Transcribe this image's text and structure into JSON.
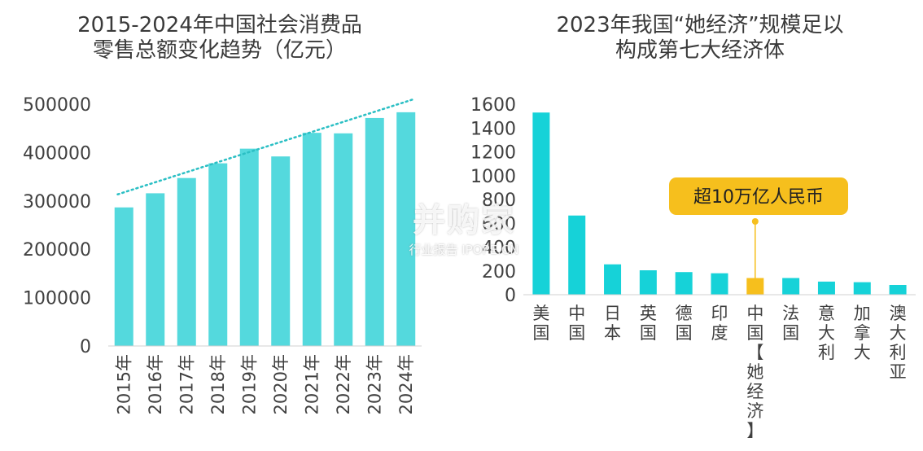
{
  "chart_data": [
    {
      "type": "bar",
      "title_lines": [
        "2015-2024年中国社会消费品",
        "零售总额变化趋势（亿元）"
      ],
      "categories": [
        "2015年",
        "2016年",
        "2017年",
        "2018年",
        "2019年",
        "2020年",
        "2021年",
        "2022年",
        "2023年",
        "2024年"
      ],
      "values": [
        286588,
        315806,
        347327,
        377783,
        408017,
        391981,
        440823,
        439733,
        471495,
        483345
      ],
      "ylim": [
        0,
        500000
      ],
      "yticks": [
        "0",
        "100000",
        "200000",
        "300000",
        "400000",
        "500000"
      ],
      "trendline": true,
      "colors": {
        "bar": "#54d9dd",
        "trend": "#2bbfc4"
      }
    },
    {
      "type": "bar",
      "title_lines": [
        "2023年我国“她经济”规模足以",
        "构成第七大经济体"
      ],
      "categories": [
        "美国",
        "中国",
        "日本",
        "英国",
        "德国",
        "印度",
        "中国【她经济】",
        "法国",
        "意大利",
        "加拿大",
        "澳大利亚"
      ],
      "values": [
        1530,
        665,
        255,
        205,
        190,
        180,
        140,
        140,
        110,
        105,
        82
      ],
      "ylim": [
        0,
        1600
      ],
      "yticks": [
        "0",
        "200",
        "400",
        "600",
        "800",
        "1000",
        "1200",
        "1400",
        "1600"
      ],
      "highlight_index": 6,
      "annotation": "超10万亿人民币",
      "colors": {
        "bar": "#16d2d8",
        "highlight": "#f6bf1d",
        "callout": "#f6bf1d"
      }
    }
  ],
  "watermark": {
    "title": "并购家",
    "subtitle": "行业报告 IPOPE.CN"
  }
}
